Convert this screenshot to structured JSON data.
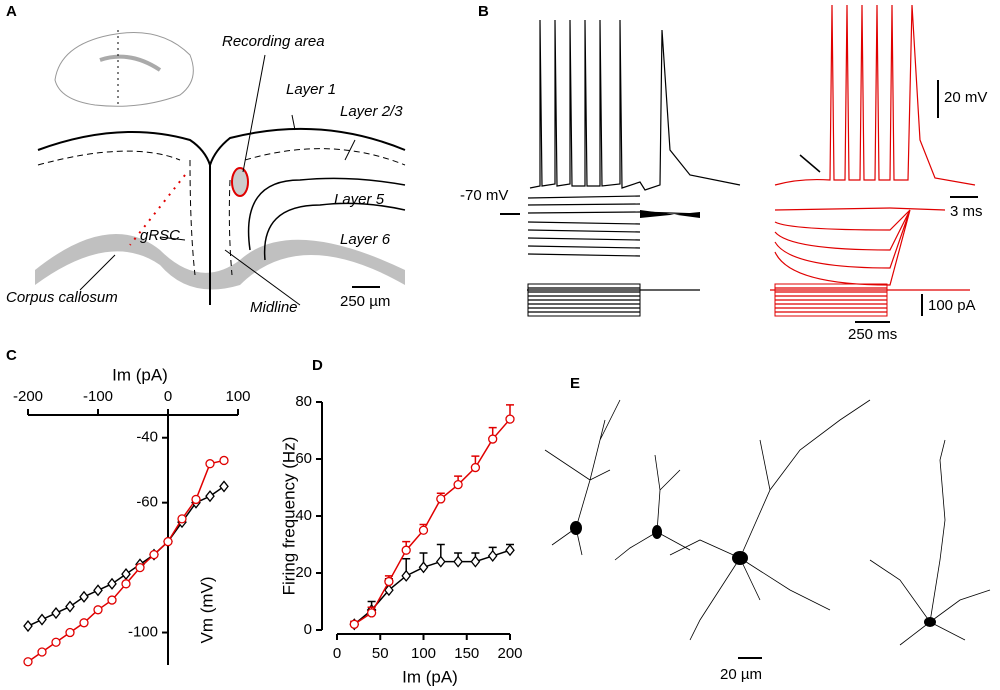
{
  "panel_labels": [
    "A",
    "B",
    "C",
    "D",
    "E"
  ],
  "panel_a": {
    "recording_area": "Recording area",
    "layer_1": "Layer 1",
    "layer_23": "Layer 2/3",
    "layer_5": "Layer  5",
    "layer_6": "Layer 6",
    "grsc": "gRSC",
    "corpus_callosum": "Corpus callosum",
    "midline": "Midline",
    "scale": "250 µm"
  },
  "panel_b": {
    "voltage_scale": "20 mV",
    "resting": "-70 mV",
    "time_scale_short": "3 ms",
    "current_scale": "100 pA",
    "time_scale_long": "250 ms"
  },
  "panel_e": {
    "scale": "20 µm"
  },
  "chart_data": [
    {
      "type": "line",
      "xlabel": "Im (pA)",
      "ylabel": "Vm (mV)",
      "x": [
        -200,
        -180,
        -160,
        -140,
        -120,
        -100,
        -80,
        -60,
        -40,
        -20,
        0,
        20,
        40,
        60,
        80
      ],
      "xlim": [
        -200,
        100
      ],
      "xticks": [
        -200,
        -100,
        0,
        100
      ],
      "ylim": [
        -110,
        -33
      ],
      "yticks": [
        -40,
        -60,
        -100
      ],
      "series": [
        {
          "color": "#000000",
          "marker": "diamond",
          "values": [
            -98,
            -96,
            -94,
            -92,
            -89,
            -87,
            -85,
            -82,
            -79,
            -76,
            -72,
            -66,
            -60,
            -58,
            -55
          ]
        },
        {
          "color": "#e00000",
          "marker": "circle",
          "values": [
            -109,
            -106,
            -103,
            -100,
            -97,
            -93,
            -90,
            -85,
            -80,
            -76,
            -72,
            -65,
            -59,
            -48,
            -47
          ]
        }
      ]
    },
    {
      "type": "line",
      "xlabel": "Im (pA)",
      "ylabel": "Firing frequency (Hz)",
      "x": [
        20,
        40,
        60,
        80,
        100,
        120,
        140,
        160,
        180,
        200
      ],
      "xlim": [
        0,
        200
      ],
      "xticks": [
        0,
        50,
        100,
        150,
        200
      ],
      "ylim": [
        0,
        80
      ],
      "yticks": [
        0,
        20,
        40,
        60,
        80
      ],
      "series": [
        {
          "color": "#000000",
          "marker": "diamond",
          "values": [
            2,
            7,
            14,
            19,
            22,
            24,
            24,
            24,
            26,
            28
          ],
          "errors": [
            1,
            3,
            4,
            6,
            5,
            6,
            3,
            3,
            3,
            2
          ]
        },
        {
          "color": "#e00000",
          "marker": "circle",
          "values": [
            2,
            6,
            17,
            28,
            35,
            46,
            51,
            57,
            67,
            74
          ],
          "errors": [
            1,
            2,
            2,
            3,
            2,
            2,
            3,
            4,
            4,
            5
          ]
        }
      ]
    }
  ]
}
